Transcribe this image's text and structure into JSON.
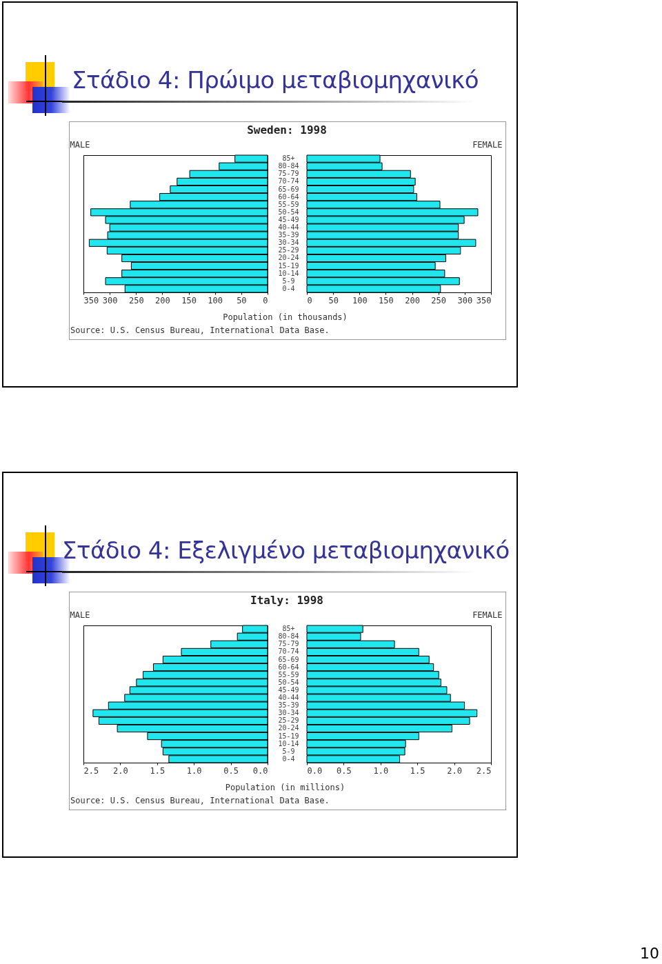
{
  "chart_data": [
    {
      "type": "bar",
      "orientation": "horizontal",
      "title": "Στάδιο 4: Πρώιμο μεταβιομηχανικό",
      "subtitle": "Sweden: 1998",
      "xlabel": "Population (in thousands)",
      "annotations": [
        "MALE",
        "Source: U.S. Census Bureau, International Data Base."
      ],
      "tick_labels": "x",
      "color": "#22e6ee",
      "categories": [
        "85+",
        "80-84",
        "75-79",
        "70-74",
        "65-69",
        "60-64",
        "55-59",
        "50-54",
        "45-49",
        "40-44",
        "35-39",
        "30-34",
        "25-29",
        "20-24",
        "15-19",
        "10-14",
        "5-9",
        "0-4"
      ],
      "values": [
        62,
        92,
        148,
        172,
        185,
        205,
        261,
        336,
        308,
        300,
        304,
        339,
        305,
        277,
        259,
        277,
        308,
        271
      ],
      "xlim": [
        350,
        0
      ],
      "xticks": [
        350,
        300,
        250,
        200,
        150,
        100,
        50,
        0
      ]
    },
    {
      "type": "bar",
      "orientation": "horizontal",
      "annotations": [
        "FEMALE"
      ],
      "color": "#22e6ee",
      "categories": [
        "85+",
        "80-84",
        "75-79",
        "70-74",
        "65-69",
        "60-64",
        "55-59",
        "50-54",
        "45-49",
        "40-44",
        "35-39",
        "30-34",
        "25-29",
        "20-24",
        "15-19",
        "10-14",
        "5-9",
        "0-4"
      ],
      "values": [
        139,
        143,
        197,
        206,
        203,
        209,
        253,
        325,
        299,
        288,
        288,
        321,
        292,
        264,
        244,
        262,
        290,
        254
      ],
      "xlim": [
        0,
        350
      ],
      "xticks": [
        0,
        50,
        100,
        150,
        200,
        250,
        300,
        350
      ]
    },
    {
      "type": "bar",
      "orientation": "horizontal",
      "title": "Στάδιο 4: Εξελιγμένο μεταβιομηχανικό",
      "subtitle": "Italy: 1998",
      "xlabel": "Population (in millions)",
      "annotations": [
        "MALE",
        "Source: U.S. Census Bureau, International Data Base."
      ],
      "tick_labels": "x",
      "color": "#22e6ee",
      "categories": [
        "85+",
        "80-84",
        "75-79",
        "70-74",
        "65-69",
        "60-64",
        "55-59",
        "50-54",
        "45-49",
        "40-44",
        "35-39",
        "30-34",
        "25-29",
        "20-24",
        "15-19",
        "10-14",
        "5-9",
        "0-4"
      ],
      "values": [
        0.34,
        0.41,
        0.77,
        1.17,
        1.42,
        1.55,
        1.69,
        1.78,
        1.87,
        1.94,
        2.16,
        2.37,
        2.29,
        2.04,
        1.63,
        1.44,
        1.42,
        1.34
      ],
      "xlim": [
        2.5,
        0
      ],
      "xticks": [
        2.5,
        {
          "value": 2,
          "label": "2.0"
        },
        1.5,
        {
          "value": 1,
          "label": "1.0"
        },
        0.5,
        {
          "value": 0,
          "label": "0.0"
        }
      ]
    },
    {
      "type": "bar",
      "orientation": "horizontal",
      "annotations": [
        "FEMALE",
        "10"
      ],
      "color": "#22e6ee",
      "categories": [
        "85+",
        "80-84",
        "75-79",
        "70-74",
        "65-69",
        "60-64",
        "55-59",
        "50-54",
        "45-49",
        "40-44",
        "35-39",
        "30-34",
        "25-29",
        "20-24",
        "15-19",
        "10-14",
        "5-9",
        "0-4"
      ],
      "values": [
        0.76,
        0.73,
        1.19,
        1.52,
        1.66,
        1.72,
        1.79,
        1.82,
        1.9,
        1.95,
        2.14,
        2.31,
        2.21,
        1.97,
        1.52,
        1.34,
        1.33,
        1.26
      ],
      "xlim": [
        0,
        2.5
      ],
      "xticks": [
        {
          "value": 0,
          "label": "0.0"
        },
        0.5,
        {
          "value": 1,
          "label": "1.0"
        },
        1.5,
        {
          "value": 2,
          "label": "2.0"
        },
        2.5
      ]
    }
  ]
}
